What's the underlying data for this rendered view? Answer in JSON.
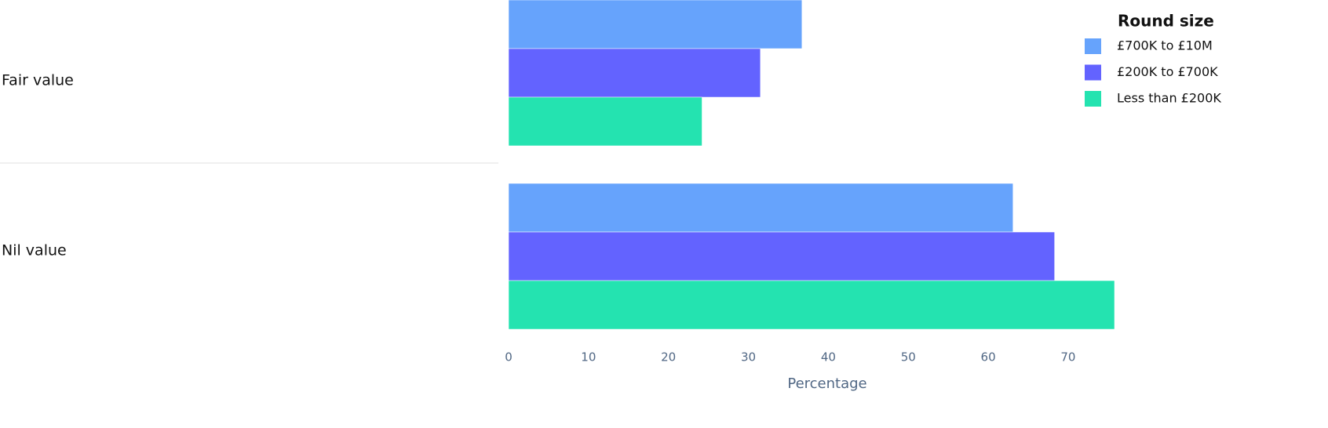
{
  "chart_data": {
    "type": "hbar",
    "categories": [
      "Fair value",
      "Nil value"
    ],
    "series": [
      {
        "name": "£700K to £10M",
        "color": "#66a3fc",
        "values": [
          36.7,
          63.1
        ]
      },
      {
        "name": "£200K to £700K",
        "color": "#6363ff",
        "values": [
          31.5,
          68.3
        ]
      },
      {
        "name": "Less than £200K",
        "color": "#24e3b0",
        "values": [
          24.2,
          75.8
        ]
      }
    ],
    "xlabel": "Percentage",
    "legend_title": "Round size",
    "xlim": [
      0,
      75.8
    ],
    "xticks": [
      0,
      10,
      20,
      30,
      40,
      50,
      60,
      70
    ]
  }
}
